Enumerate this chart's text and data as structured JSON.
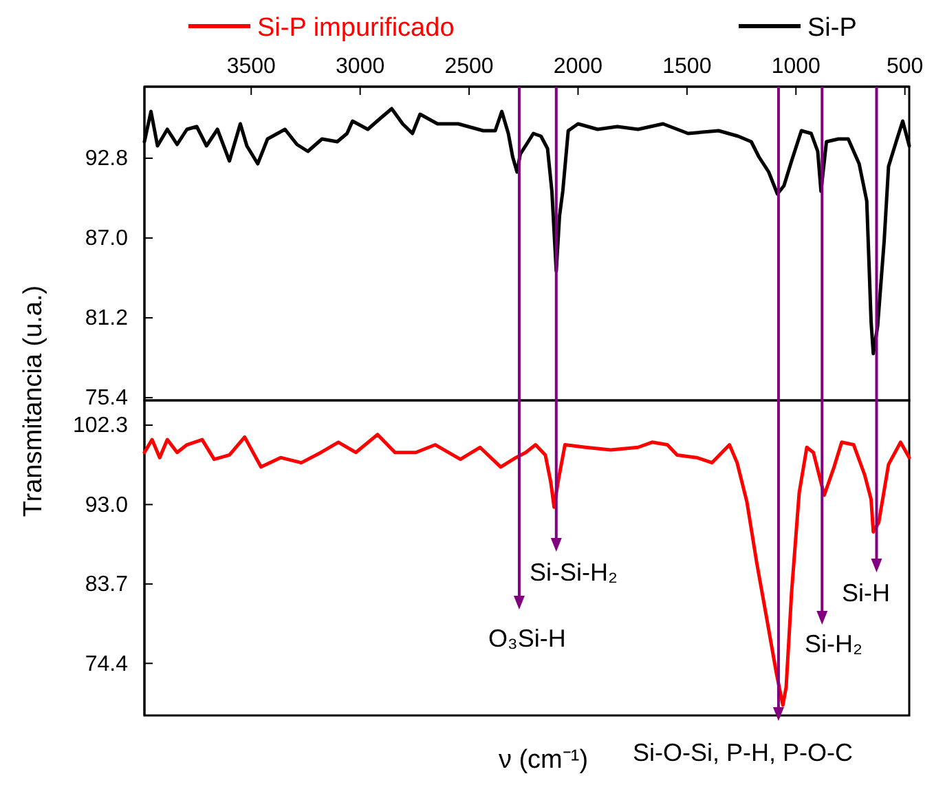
{
  "chart_data": [
    {
      "type": "line",
      "xlim": [
        3990,
        480
      ],
      "xticks": [
        3500,
        3000,
        2500,
        2000,
        1500,
        1000,
        500
      ],
      "ylim": [
        75.2,
        98.0
      ],
      "yticks": [
        92.8,
        {
          "value": 87,
          "label": "87.0"
        },
        81.2,
        75.4
      ],
      "ylabel": "Transmitancia (u.a.)",
      "legend": "top",
      "line_style": "solid",
      "marker": "none",
      "grid": false,
      "x": [
        3990,
        3960,
        3930,
        3885,
        3840,
        3795,
        3750,
        3705,
        3655,
        3600,
        3550,
        3520,
        3470,
        3425,
        3345,
        3290,
        3240,
        3175,
        3105,
        3060,
        3035,
        2965,
        2900,
        2855,
        2805,
        2760,
        2725,
        2645,
        2550,
        2435,
        2380,
        2350,
        2320,
        2300,
        2280,
        2265,
        2205,
        2170,
        2140,
        2120,
        2100,
        2085,
        2070,
        2045,
        2000,
        1910,
        1820,
        1725,
        1610,
        1495,
        1355,
        1265,
        1205,
        1170,
        1125,
        1085,
        1055,
        1020,
        975,
        930,
        900,
        885,
        860,
        805,
        760,
        710,
        675,
        655,
        645,
        625,
        595,
        575,
        540,
        510,
        480
      ],
      "series": [
        {
          "name": "Si-P",
          "color": "#000000",
          "values": [
            94.0,
            96.2,
            93.7,
            94.9,
            93.8,
            94.9,
            95.1,
            93.7,
            94.9,
            92.6,
            95.3,
            93.7,
            92.4,
            94.2,
            94.9,
            93.8,
            93.3,
            94.2,
            94.0,
            94.6,
            95.5,
            94.9,
            95.8,
            96.4,
            95.3,
            94.6,
            96.0,
            95.3,
            95.3,
            94.8,
            94.8,
            96.2,
            94.6,
            92.9,
            91.8,
            93.1,
            94.6,
            94.4,
            93.5,
            90.4,
            84.6,
            88.6,
            90.4,
            94.8,
            95.3,
            94.9,
            95.1,
            94.9,
            95.3,
            94.6,
            94.8,
            94.4,
            94.0,
            92.9,
            91.8,
            90.2,
            90.8,
            92.6,
            94.8,
            94.6,
            93.3,
            90.4,
            94.0,
            94.2,
            94.2,
            92.4,
            89.7,
            80.9,
            78.6,
            80.6,
            86.8,
            92.2,
            94.0,
            95.5,
            93.7
          ]
        }
      ]
    },
    {
      "type": "line",
      "xlim": [
        3990,
        480
      ],
      "ylim": [
        68.3,
        105.2
      ],
      "yticks": [
        102.3,
        {
          "value": 93,
          "label": "93.0"
        },
        83.7,
        74.4
      ],
      "xlabel": "ν (cm⁻¹)",
      "tick_labels": "y",
      "line_style": "solid",
      "marker": "none",
      "grid": false,
      "x": [
        3990,
        3955,
        3920,
        3885,
        3840,
        3795,
        3725,
        3670,
        3600,
        3530,
        3455,
        3365,
        3270,
        3180,
        3100,
        3020,
        2920,
        2840,
        2745,
        2655,
        2540,
        2450,
        2355,
        2285,
        2240,
        2195,
        2150,
        2125,
        2110,
        2090,
        2060,
        1965,
        1850,
        1725,
        1660,
        1590,
        1545,
        1455,
        1385,
        1305,
        1270,
        1225,
        1180,
        1135,
        1090,
        1060,
        1045,
        1020,
        985,
        950,
        920,
        870,
        825,
        790,
        735,
        685,
        655,
        645,
        620,
        575,
        520,
        480
      ],
      "series": [
        {
          "name": "Si-P impurificado",
          "color": "#ff0000",
          "values": [
            99.1,
            100.6,
            98.5,
            100.6,
            99.1,
            100.0,
            100.6,
            98.3,
            98.8,
            100.9,
            97.4,
            98.5,
            97.9,
            99.1,
            100.3,
            99.1,
            101.2,
            99.1,
            99.1,
            100.0,
            98.3,
            99.7,
            97.4,
            98.5,
            99.1,
            100.0,
            98.8,
            95.6,
            92.7,
            95.9,
            100.0,
            99.7,
            99.4,
            99.7,
            100.3,
            100.0,
            98.8,
            98.5,
            97.9,
            100.0,
            97.9,
            93.3,
            86.2,
            79.8,
            73.3,
            69.5,
            71.6,
            82.7,
            94.4,
            99.7,
            99.1,
            94.1,
            97.4,
            100.3,
            100.0,
            96.5,
            93.6,
            89.8,
            90.9,
            97.7,
            100.3,
            98.5
          ]
        }
      ],
      "ref_lines": [
        {
          "axis": "x",
          "value": 2270,
          "label": "O₃Si-H"
        },
        {
          "axis": "x",
          "value": 2100,
          "label": "Si-Si-H₂"
        },
        {
          "axis": "x",
          "value": 1080,
          "label": "Si-O-Si, P-H, P-O-C"
        },
        {
          "axis": "x",
          "value": 880,
          "label": "Si-H₂"
        },
        {
          "axis": "x",
          "value": 630,
          "label": "Si-H"
        }
      ]
    }
  ]
}
